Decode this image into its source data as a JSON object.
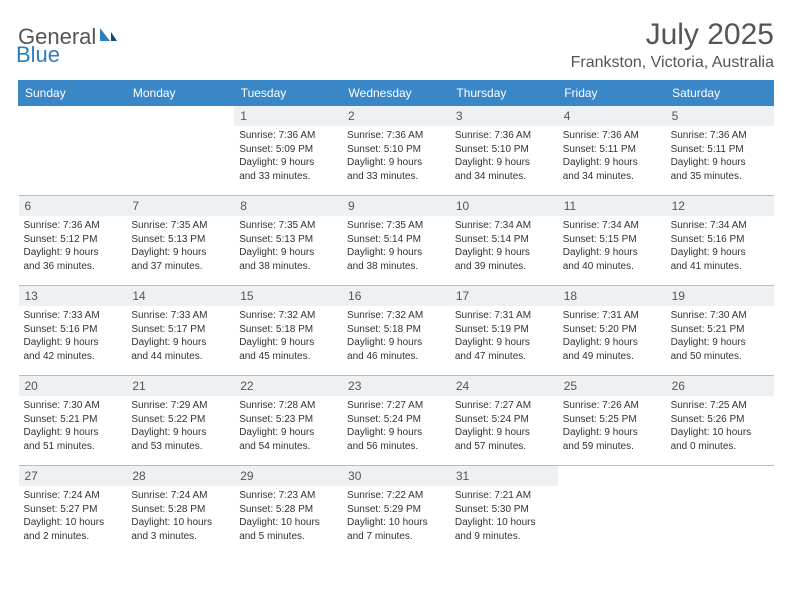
{
  "logo": {
    "part1": "General",
    "part2": "Blue"
  },
  "title": "July 2025",
  "location": "Frankston, Victoria, Australia",
  "colors": {
    "header_bg": "#3a87c8",
    "daynum_bg": "#eef1f3",
    "border": "#bbbbbb",
    "text": "#333333",
    "title_text": "#555555",
    "logo_blue": "#2c7fbf"
  },
  "week_headers": [
    "Sunday",
    "Monday",
    "Tuesday",
    "Wednesday",
    "Thursday",
    "Friday",
    "Saturday"
  ],
  "weeks": [
    [
      null,
      null,
      {
        "n": "1",
        "sr": "7:36 AM",
        "ss": "5:09 PM",
        "dl1": "9 hours",
        "dl2": "and 33 minutes."
      },
      {
        "n": "2",
        "sr": "7:36 AM",
        "ss": "5:10 PM",
        "dl1": "9 hours",
        "dl2": "and 33 minutes."
      },
      {
        "n": "3",
        "sr": "7:36 AM",
        "ss": "5:10 PM",
        "dl1": "9 hours",
        "dl2": "and 34 minutes."
      },
      {
        "n": "4",
        "sr": "7:36 AM",
        "ss": "5:11 PM",
        "dl1": "9 hours",
        "dl2": "and 34 minutes."
      },
      {
        "n": "5",
        "sr": "7:36 AM",
        "ss": "5:11 PM",
        "dl1": "9 hours",
        "dl2": "and 35 minutes."
      }
    ],
    [
      {
        "n": "6",
        "sr": "7:36 AM",
        "ss": "5:12 PM",
        "dl1": "9 hours",
        "dl2": "and 36 minutes."
      },
      {
        "n": "7",
        "sr": "7:35 AM",
        "ss": "5:13 PM",
        "dl1": "9 hours",
        "dl2": "and 37 minutes."
      },
      {
        "n": "8",
        "sr": "7:35 AM",
        "ss": "5:13 PM",
        "dl1": "9 hours",
        "dl2": "and 38 minutes."
      },
      {
        "n": "9",
        "sr": "7:35 AM",
        "ss": "5:14 PM",
        "dl1": "9 hours",
        "dl2": "and 38 minutes."
      },
      {
        "n": "10",
        "sr": "7:34 AM",
        "ss": "5:14 PM",
        "dl1": "9 hours",
        "dl2": "and 39 minutes."
      },
      {
        "n": "11",
        "sr": "7:34 AM",
        "ss": "5:15 PM",
        "dl1": "9 hours",
        "dl2": "and 40 minutes."
      },
      {
        "n": "12",
        "sr": "7:34 AM",
        "ss": "5:16 PM",
        "dl1": "9 hours",
        "dl2": "and 41 minutes."
      }
    ],
    [
      {
        "n": "13",
        "sr": "7:33 AM",
        "ss": "5:16 PM",
        "dl1": "9 hours",
        "dl2": "and 42 minutes."
      },
      {
        "n": "14",
        "sr": "7:33 AM",
        "ss": "5:17 PM",
        "dl1": "9 hours",
        "dl2": "and 44 minutes."
      },
      {
        "n": "15",
        "sr": "7:32 AM",
        "ss": "5:18 PM",
        "dl1": "9 hours",
        "dl2": "and 45 minutes."
      },
      {
        "n": "16",
        "sr": "7:32 AM",
        "ss": "5:18 PM",
        "dl1": "9 hours",
        "dl2": "and 46 minutes."
      },
      {
        "n": "17",
        "sr": "7:31 AM",
        "ss": "5:19 PM",
        "dl1": "9 hours",
        "dl2": "and 47 minutes."
      },
      {
        "n": "18",
        "sr": "7:31 AM",
        "ss": "5:20 PM",
        "dl1": "9 hours",
        "dl2": "and 49 minutes."
      },
      {
        "n": "19",
        "sr": "7:30 AM",
        "ss": "5:21 PM",
        "dl1": "9 hours",
        "dl2": "and 50 minutes."
      }
    ],
    [
      {
        "n": "20",
        "sr": "7:30 AM",
        "ss": "5:21 PM",
        "dl1": "9 hours",
        "dl2": "and 51 minutes."
      },
      {
        "n": "21",
        "sr": "7:29 AM",
        "ss": "5:22 PM",
        "dl1": "9 hours",
        "dl2": "and 53 minutes."
      },
      {
        "n": "22",
        "sr": "7:28 AM",
        "ss": "5:23 PM",
        "dl1": "9 hours",
        "dl2": "and 54 minutes."
      },
      {
        "n": "23",
        "sr": "7:27 AM",
        "ss": "5:24 PM",
        "dl1": "9 hours",
        "dl2": "and 56 minutes."
      },
      {
        "n": "24",
        "sr": "7:27 AM",
        "ss": "5:24 PM",
        "dl1": "9 hours",
        "dl2": "and 57 minutes."
      },
      {
        "n": "25",
        "sr": "7:26 AM",
        "ss": "5:25 PM",
        "dl1": "9 hours",
        "dl2": "and 59 minutes."
      },
      {
        "n": "26",
        "sr": "7:25 AM",
        "ss": "5:26 PM",
        "dl1": "10 hours",
        "dl2": "and 0 minutes."
      }
    ],
    [
      {
        "n": "27",
        "sr": "7:24 AM",
        "ss": "5:27 PM",
        "dl1": "10 hours",
        "dl2": "and 2 minutes."
      },
      {
        "n": "28",
        "sr": "7:24 AM",
        "ss": "5:28 PM",
        "dl1": "10 hours",
        "dl2": "and 3 minutes."
      },
      {
        "n": "29",
        "sr": "7:23 AM",
        "ss": "5:28 PM",
        "dl1": "10 hours",
        "dl2": "and 5 minutes."
      },
      {
        "n": "30",
        "sr": "7:22 AM",
        "ss": "5:29 PM",
        "dl1": "10 hours",
        "dl2": "and 7 minutes."
      },
      {
        "n": "31",
        "sr": "7:21 AM",
        "ss": "5:30 PM",
        "dl1": "10 hours",
        "dl2": "and 9 minutes."
      },
      null,
      null
    ]
  ],
  "labels": {
    "sunrise": "Sunrise:",
    "sunset": "Sunset:",
    "daylight": "Daylight:"
  }
}
